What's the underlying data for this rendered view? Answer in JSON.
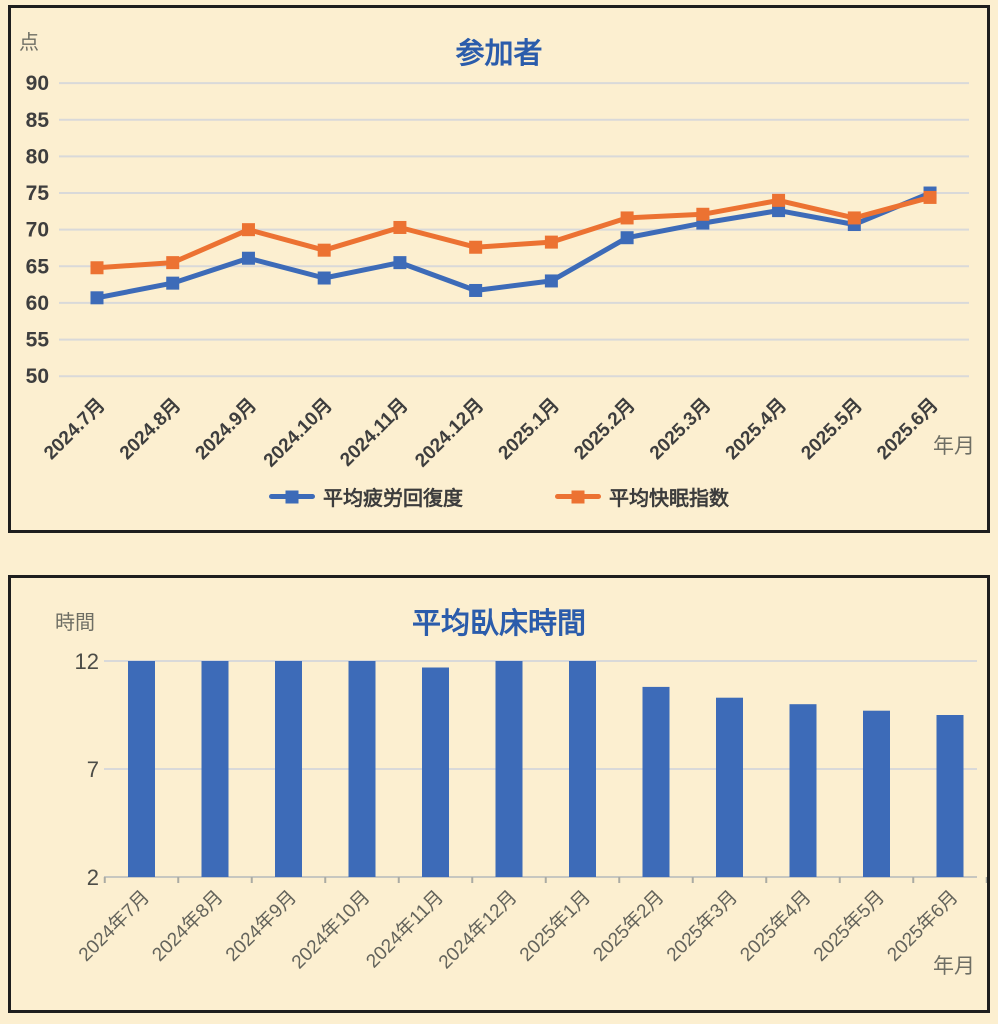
{
  "page": {
    "background": "#FCEFD0"
  },
  "chart_data": [
    {
      "type": "line",
      "title": "参加者",
      "ylabel": "点",
      "xlabel": "年月",
      "ylim": [
        50,
        90
      ],
      "yticks": [
        90,
        85,
        80,
        75,
        70,
        65,
        60,
        55,
        50
      ],
      "grid": true,
      "legend_position": "bottom",
      "categories": [
        "2024.7月",
        "2024.8月",
        "2024.9月",
        "2024.10月",
        "2024.11月",
        "2024.12月",
        "2025.1月",
        "2025.2月",
        "2025.3月",
        "2025.4月",
        "2025.5月",
        "2025.6月"
      ],
      "series": [
        {
          "name": "平均疲労回復度",
          "color": "#3D6BB8",
          "values": [
            60.7,
            62.7,
            66.1,
            63.4,
            65.5,
            61.7,
            63.0,
            68.9,
            70.9,
            72.6,
            70.7,
            75.0
          ]
        },
        {
          "name": "平均快眠指数",
          "color": "#EC7232",
          "values": [
            64.8,
            65.5,
            70.0,
            67.2,
            70.3,
            67.6,
            68.3,
            71.6,
            72.1,
            74.0,
            71.6,
            74.4
          ]
        }
      ]
    },
    {
      "type": "bar",
      "title": "平均臥床時間",
      "ylabel": "時間",
      "xlabel": "年月",
      "ylim": [
        2,
        12
      ],
      "yticks": [
        12,
        7,
        2
      ],
      "grid": true,
      "bar_color": "#3D6BB8",
      "categories": [
        "2024年7月",
        "2024年8月",
        "2024年9月",
        "2024年10月",
        "2024年11月",
        "2024年12月",
        "2025年1月",
        "2025年2月",
        "2025年3月",
        "2025年4月",
        "2025年5月",
        "2025年6月"
      ],
      "values": [
        12,
        12,
        12,
        12,
        11.7,
        12,
        12,
        10.8,
        10.3,
        10.0,
        9.7,
        9.5
      ]
    }
  ]
}
